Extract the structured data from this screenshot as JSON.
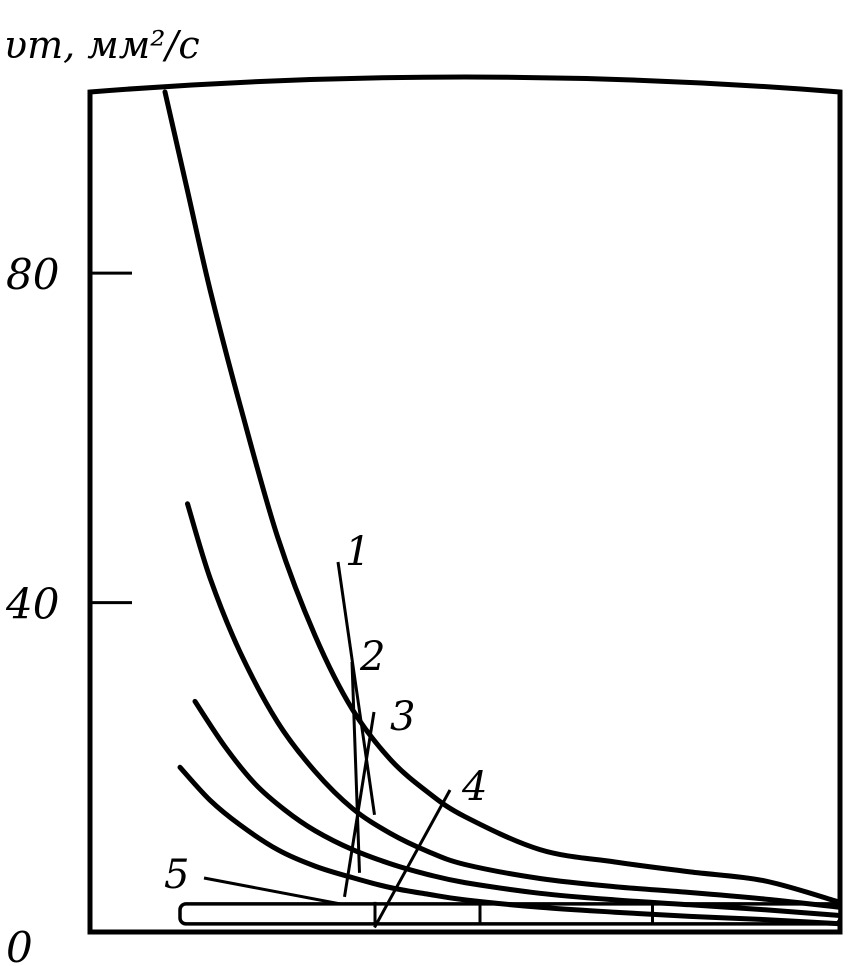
{
  "chart_data": {
    "type": "line",
    "ylabel": "υт, мм²/с",
    "y_ticks": [
      "0",
      "40",
      "80"
    ],
    "y_tick_values": [
      0,
      40,
      80
    ],
    "ylim": [
      0,
      102
    ],
    "xlim": [
      0,
      10
    ],
    "grid": false,
    "series": [
      {
        "name": "1",
        "x": [
          1.0,
          1.3,
          1.6,
          2.0,
          2.5,
          3.0,
          3.5,
          4.0,
          4.5,
          5.0,
          6.0,
          7.0,
          8.0,
          9.0,
          10.0
        ],
        "y": [
          102,
          90,
          78,
          64,
          48,
          36,
          27,
          21,
          17,
          14,
          10,
          8.5,
          7.3,
          6.2,
          3.6
        ]
      },
      {
        "name": "2",
        "x": [
          1.3,
          1.6,
          2.0,
          2.5,
          3.0,
          3.5,
          4.0,
          4.5,
          5.0,
          6.0,
          7.0,
          8.0,
          9.0,
          10.0
        ],
        "y": [
          52,
          43,
          34,
          25.5,
          19.5,
          15,
          12,
          9.8,
          8.2,
          6.5,
          5.5,
          4.8,
          4.0,
          3.0
        ]
      },
      {
        "name": "3",
        "x": [
          1.4,
          1.8,
          2.2,
          2.6,
          3.0,
          3.5,
          4.0,
          4.5,
          5.0,
          6.0,
          7.0,
          8.0,
          9.0,
          10.0
        ],
        "y": [
          28,
          22.5,
          18,
          14.8,
          12.3,
          10,
          8.3,
          7.0,
          6.0,
          4.7,
          3.9,
          3.3,
          2.7,
          2.0
        ]
      },
      {
        "name": "4",
        "x": [
          1.2,
          1.6,
          2.0,
          2.5,
          3.0,
          3.5,
          4.0,
          4.5,
          5.0,
          6.0,
          7.0,
          8.0,
          9.0,
          10.0
        ],
        "y": [
          20,
          16,
          13,
          10,
          8,
          6.6,
          5.4,
          4.6,
          3.9,
          3.0,
          2.4,
          1.9,
          1.5,
          1.0
        ]
      },
      {
        "name": "5",
        "x": [
          1.2,
          10.0
        ],
        "y": [
          2.2,
          2.2
        ]
      }
    ]
  }
}
